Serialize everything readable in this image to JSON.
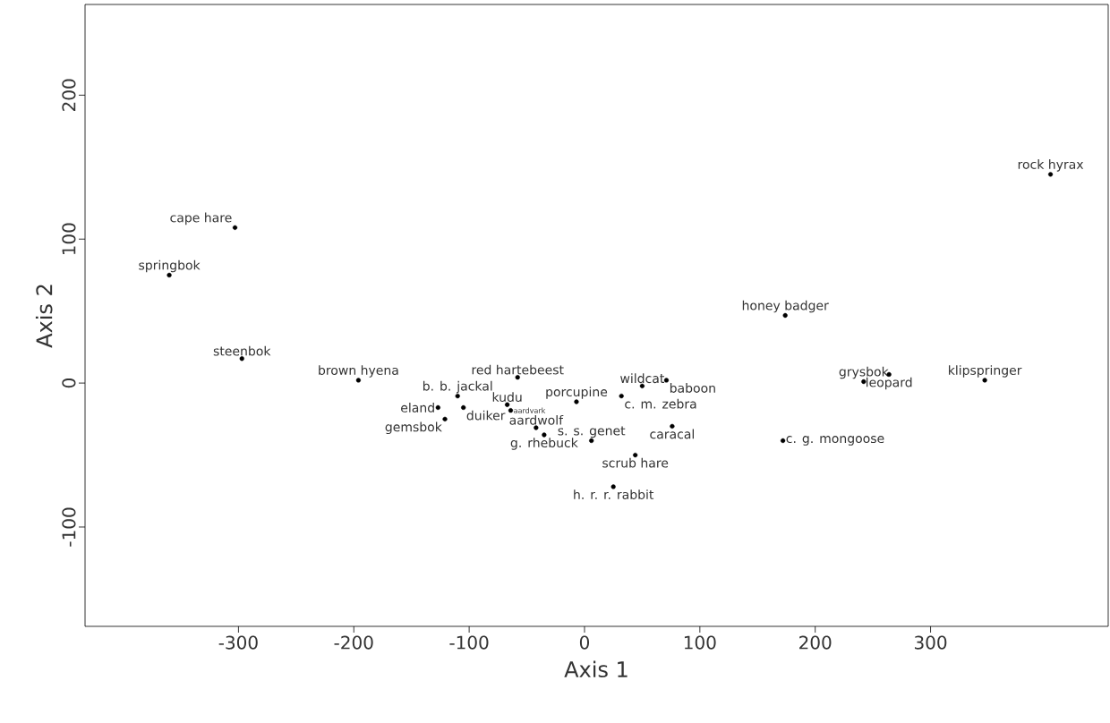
{
  "chart_data": {
    "type": "scatter",
    "xlabel": "Axis 1",
    "ylabel": "Axis 2",
    "color": "#000000",
    "xlim": [
      -433,
      454
    ],
    "ylim": [
      -169,
      263
    ],
    "xticks": [
      -300,
      -200,
      -100,
      0,
      100,
      200,
      300
    ],
    "yticks": [
      -100,
      0,
      100,
      200
    ],
    "x": [
      404,
      -303,
      -360,
      -297,
      -196,
      -58,
      -110,
      -127,
      -105,
      -121,
      -67,
      -64,
      -42,
      -35,
      -7,
      32,
      50,
      71,
      6,
      76,
      44,
      25,
      174,
      172,
      242,
      264,
      347
    ],
    "values": [
      145,
      108,
      75,
      17,
      2,
      4,
      -9,
      -17,
      -17,
      -25,
      -15,
      -19,
      -31,
      -36,
      -13,
      -9,
      -2,
      2,
      -40,
      -30,
      -50,
      -72,
      47,
      -40,
      1,
      6,
      2
    ],
    "annotations": [
      {
        "text": "rock hyrax",
        "x": 404,
        "y": 145
      },
      {
        "text": "cape hare",
        "x": -303,
        "y": 108
      },
      {
        "text": "springbok",
        "x": -360,
        "y": 75
      },
      {
        "text": "steenbok",
        "x": -297,
        "y": 17
      },
      {
        "text": "brown hyena",
        "x": -196,
        "y": 2
      },
      {
        "text": "red hartebeest",
        "x": -58,
        "y": 4
      },
      {
        "text": "b. b. jackal",
        "x": -110,
        "y": -9
      },
      {
        "text": "eland",
        "x": -127,
        "y": -17
      },
      {
        "text": "duiker",
        "x": -105,
        "y": -17
      },
      {
        "text": "gemsbok",
        "x": -121,
        "y": -25
      },
      {
        "text": "kudu",
        "x": -67,
        "y": -15
      },
      {
        "text": "aardvark",
        "x": -64,
        "y": -19
      },
      {
        "text": "aardwolf",
        "x": -42,
        "y": -31
      },
      {
        "text": "g. rhebuck",
        "x": -35,
        "y": -36
      },
      {
        "text": "porcupine",
        "x": -7,
        "y": -13
      },
      {
        "text": "c. m. zebra",
        "x": 32,
        "y": -9
      },
      {
        "text": "wildcat",
        "x": 50,
        "y": -2
      },
      {
        "text": "baboon",
        "x": 71,
        "y": 2
      },
      {
        "text": "s. s. genet",
        "x": 6,
        "y": -40
      },
      {
        "text": "caracal",
        "x": 76,
        "y": -30
      },
      {
        "text": "scrub hare",
        "x": 44,
        "y": -50
      },
      {
        "text": "h. r. r. rabbit",
        "x": 25,
        "y": -72
      },
      {
        "text": "honey badger",
        "x": 174,
        "y": 47
      },
      {
        "text": "c. g. mongoose",
        "x": 172,
        "y": -40
      },
      {
        "text": "grysbok",
        "x": 242,
        "y": 1
      },
      {
        "text": "leopard",
        "x": 264,
        "y": 6
      },
      {
        "text": "klipspringer",
        "x": 347,
        "y": 2
      }
    ]
  }
}
